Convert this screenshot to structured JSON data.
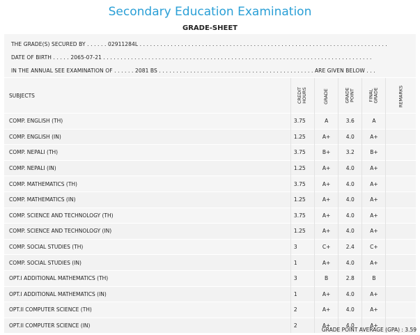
{
  "header": {
    "title": "Secondary Education Examination",
    "subtitle": "GRADE-SHEET"
  },
  "info": {
    "line1": "THE GRADE(S) SECURED BY . . . . . . 02911284L . . . . . . . . . . . . . . . . . . . . . . . . . . . . . . . . . . . . . . . . . . . . . . . . . . . . . . . . . . . . . . . . . . . . . . . .",
    "line2": "DATE OF BIRTH . . . . . 2065-07-21 . . . . . . . . . . . . . . . . . . . . . . . . . . . . . . . . . . . . . . . . . . . . . . . . . . . . . . . . . . . . . . . . . . . . . . . . . . . . . .",
    "line3": "IN THE ANNUAL SEE EXAMINATION OF . . . . . . 2081 BS . . . . . . . . . . . . . . . . . . . . . . . . . . . . . . . . . . . . . . . . . . . . . ARE GIVEN BELOW . . ."
  },
  "table": {
    "headers": {
      "subjects": "SUBJECTS",
      "credit_hours": "CREDIT\nHOURS",
      "grade": "GRADE",
      "grade_point": "GRADE\nPOINT",
      "final_grade": "FINAL\nGRADE",
      "remarks": "REMARKS"
    },
    "rows": [
      {
        "subject": "COMP. ENGLISH (TH)",
        "credit": "3.75",
        "grade": "A",
        "point": "3.6",
        "final": "A"
      },
      {
        "subject": "COMP. ENGLISH (IN)",
        "credit": "1.25",
        "grade": "A+",
        "point": "4.0",
        "final": "A+"
      },
      {
        "subject": "COMP. NEPALI (TH)",
        "credit": "3.75",
        "grade": "B+",
        "point": "3.2",
        "final": "B+"
      },
      {
        "subject": "COMP. NEPALI (IN)",
        "credit": "1.25",
        "grade": "A+",
        "point": "4.0",
        "final": "A+"
      },
      {
        "subject": "COMP. MATHEMATICS (TH)",
        "credit": "3.75",
        "grade": "A+",
        "point": "4.0",
        "final": "A+"
      },
      {
        "subject": "COMP. MATHEMATICS (IN)",
        "credit": "1.25",
        "grade": "A+",
        "point": "4.0",
        "final": "A+"
      },
      {
        "subject": "COMP. SCIENCE AND TECHNOLOGY (TH)",
        "credit": "3.75",
        "grade": "A+",
        "point": "4.0",
        "final": "A+"
      },
      {
        "subject": "COMP. SCIENCE AND TECHNOLOGY (IN)",
        "credit": "1.25",
        "grade": "A+",
        "point": "4.0",
        "final": "A+"
      },
      {
        "subject": "COMP. SOCIAL STUDIES (TH)",
        "credit": "3",
        "grade": "C+",
        "point": "2.4",
        "final": "C+"
      },
      {
        "subject": "COMP. SOCIAL STUDIES (IN)",
        "credit": "1",
        "grade": "A+",
        "point": "4.0",
        "final": "A+"
      },
      {
        "subject": "OPT.I ADDITIONAL MATHEMATICS (TH)",
        "credit": "3",
        "grade": "B",
        "point": "2.8",
        "final": "B"
      },
      {
        "subject": "OPT.I ADDITIONAL MATHEMATICS (IN)",
        "credit": "1",
        "grade": "A+",
        "point": "4.0",
        "final": "A+"
      },
      {
        "subject": "OPT.II COMPUTER SCIENCE (TH)",
        "credit": "2",
        "grade": "A+",
        "point": "4.0",
        "final": "A+"
      },
      {
        "subject": "OPT.II COMPUTER SCIENCE (IN)",
        "credit": "2",
        "grade": "A+",
        "point": "4.0",
        "final": "A+"
      }
    ]
  },
  "footer": {
    "gpa": "GRADE POINT AVERAGE (GPA) : 3.59"
  },
  "colors": {
    "title": "#2a9fd6",
    "panel": "#f5f5f5"
  }
}
